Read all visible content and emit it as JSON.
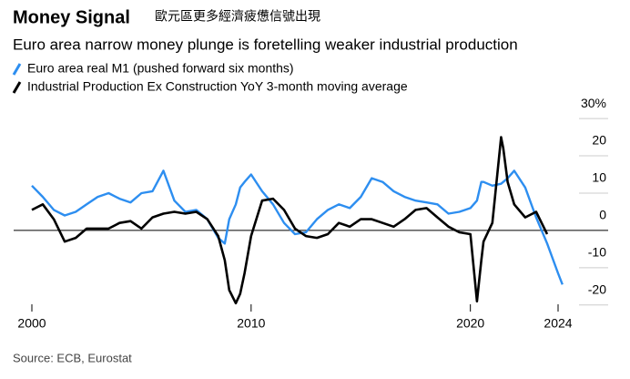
{
  "chart_data": {
    "type": "line",
    "title": "Money Signal",
    "title_note": "歐元區更多經濟疲憊信號出現",
    "subtitle": "Euro area narrow money plunge is foretelling weaker industrial production",
    "source": "Source: ECB, Eurostat",
    "x": [
      2000,
      2000.5,
      2001,
      2001.5,
      2002,
      2002.5,
      2003,
      2003.5,
      2004,
      2004.5,
      2005,
      2005.5,
      2006,
      2006.5,
      2007,
      2007.5,
      2008,
      2008.5,
      2008.8,
      2009,
      2009.3,
      2009.5,
      2009.7,
      2010,
      2010.5,
      2011,
      2011.5,
      2012,
      2012.5,
      2013,
      2013.5,
      2014,
      2014.5,
      2015,
      2015.5,
      2016,
      2016.5,
      2017,
      2017.5,
      2018,
      2018.5,
      2019,
      2019.5,
      2020,
      2020.3,
      2020.5,
      2020.6,
      2021,
      2021.4,
      2021.5,
      2021.7,
      2022,
      2022.5,
      2023,
      2023.5,
      2024,
      2024.2
    ],
    "series": [
      {
        "name": "Euro area real M1 (pushed forward six months)",
        "color": "#2d8ef0",
        "values": [
          12,
          9,
          5.5,
          4,
          5,
          7,
          9,
          10,
          8.5,
          7.5,
          10,
          10.5,
          16,
          8,
          5,
          5.5,
          3,
          -2,
          -3.5,
          3,
          7,
          11.5,
          13,
          15,
          10.5,
          7,
          2,
          -1,
          -0.5,
          3,
          5.5,
          7,
          6,
          9,
          14,
          13,
          10.5,
          9,
          8,
          7.5,
          7,
          4.5,
          5,
          6,
          8,
          13,
          13,
          12,
          12.5,
          13,
          14,
          16,
          11.5,
          3.5,
          -3.5,
          -11.5,
          -14.5
        ]
      },
      {
        "name": "Industrial Production Ex Construction YoY 3-month moving average",
        "color": "#000000",
        "values": [
          5.5,
          7,
          3,
          -3,
          -2,
          0.5,
          0.5,
          0.5,
          2,
          2.5,
          0.5,
          3.5,
          4.5,
          5,
          4.5,
          5,
          3,
          -1.5,
          -8,
          -16,
          -19.5,
          -17,
          -11.5,
          -1.5,
          8,
          8.5,
          5.5,
          0.5,
          -1.5,
          -2,
          -1,
          2,
          1,
          3,
          3,
          2,
          1,
          3,
          5.5,
          6,
          3.5,
          1,
          -0.5,
          -1,
          -19,
          -8,
          -3,
          2,
          25,
          22,
          13,
          7,
          3.5,
          5,
          -1,
          null,
          null
        ]
      }
    ],
    "xlim": [
      2000,
      2024
    ],
    "xticks": [
      2000,
      2010,
      2020,
      2024
    ],
    "ylim": [
      -22,
      31
    ],
    "yticks": [
      {
        "value": 30,
        "label": "30%"
      },
      20,
      10,
      0,
      -10,
      -20
    ]
  }
}
